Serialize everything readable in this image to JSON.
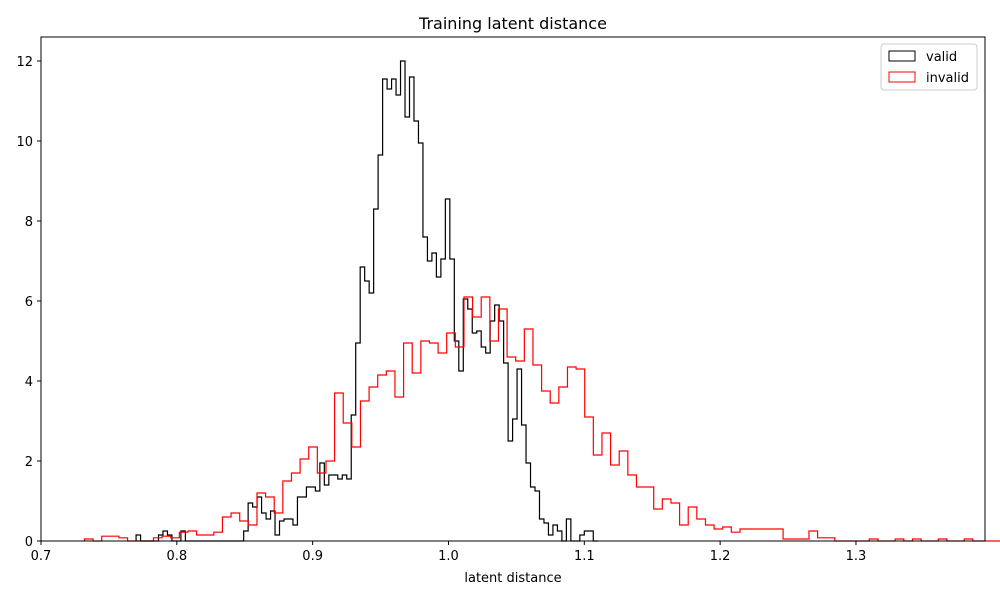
{
  "chart_data": {
    "type": "histogram",
    "title": "Training latent distance",
    "xlabel": "latent distance",
    "ylabel": "",
    "xlim": [
      0.7,
      1.395
    ],
    "ylim": [
      0,
      12.6
    ],
    "xticks": [
      0.7,
      0.8,
      0.9,
      1.0,
      1.1,
      1.2,
      1.3
    ],
    "xtick_labels": [
      "0.7",
      "0.8",
      "0.9",
      "1.0",
      "1.1",
      "1.2",
      "1.3"
    ],
    "yticks": [
      0,
      2,
      4,
      6,
      8,
      10,
      12
    ],
    "ytick_labels": [
      "0",
      "2",
      "4",
      "6",
      "8",
      "10",
      "12"
    ],
    "legend_position": "top-right",
    "series": [
      {
        "name": "valid",
        "color": "#000000",
        "bin_edges_start": 0.77,
        "bin_width": 0.0033,
        "values": [
          0.15,
          0,
          0,
          0,
          0,
          0.15,
          0.25,
          0.15,
          0,
          0,
          0.25,
          0,
          0,
          0,
          0,
          0,
          0,
          0,
          0,
          0,
          0,
          0,
          0,
          0,
          0.25,
          0.95,
          0.85,
          1.1,
          0.7,
          0.55,
          0.75,
          0.15,
          0.5,
          0.55,
          0.55,
          0.4,
          1.1,
          1.1,
          1.35,
          1.35,
          1.25,
          1.95,
          1.4,
          1.65,
          1.65,
          1.55,
          1.65,
          1.55,
          3.15,
          4.95,
          6.85,
          6.5,
          6.2,
          8.3,
          9.65,
          11.55,
          11.3,
          11.55,
          11.15,
          12.0,
          10.6,
          11.6,
          10.5,
          9.95,
          7.6,
          7.0,
          7.2,
          6.6,
          7.05,
          8.55,
          7.05,
          5.0,
          4.25,
          6.05,
          5.8,
          5.2,
          5.25,
          4.85,
          4.7,
          5.5,
          5.9,
          5.5,
          4.45,
          2.5,
          3.05,
          4.3,
          2.9,
          1.95,
          1.35,
          1.25,
          0.55,
          0.45,
          0.15,
          0.4,
          0.25,
          0,
          0.55,
          0,
          0,
          0.15,
          0.25,
          0.25,
          0
        ]
      },
      {
        "name": "invalid",
        "color": "#ff0000",
        "bin_edges_start": 0.732,
        "bin_width": 0.00635,
        "values": [
          0.05,
          0,
          0.12,
          0.12,
          0.08,
          0,
          0,
          0,
          0.08,
          0.12,
          0.08,
          0.22,
          0.25,
          0.15,
          0.15,
          0.22,
          0.6,
          0.7,
          0.5,
          0.4,
          1.2,
          1.1,
          0.7,
          1.5,
          1.7,
          2.05,
          2.35,
          1.7,
          2.0,
          3.7,
          2.95,
          2.35,
          3.5,
          3.85,
          4.15,
          4.25,
          3.6,
          4.95,
          4.2,
          5.0,
          4.95,
          4.7,
          5.2,
          4.85,
          6.1,
          5.6,
          6.1,
          5.0,
          5.8,
          4.6,
          4.5,
          5.3,
          4.4,
          3.75,
          3.45,
          3.85,
          4.35,
          4.3,
          3.1,
          2.15,
          2.7,
          1.9,
          2.25,
          1.65,
          1.35,
          1.35,
          0.8,
          1.05,
          0.95,
          0.4,
          0.85,
          0.55,
          0.4,
          0.3,
          0.35,
          0.22,
          0.3,
          0.3,
          0.3,
          0.3,
          0.3,
          0.05,
          0.05,
          0.05,
          0.25,
          0.08,
          0.08,
          0,
          0,
          0,
          0,
          0.05,
          0,
          0,
          0.05,
          0,
          0.05,
          0,
          0,
          0.05,
          0,
          0,
          0.05,
          0,
          0,
          0,
          0,
          0.05,
          0
        ]
      }
    ]
  }
}
